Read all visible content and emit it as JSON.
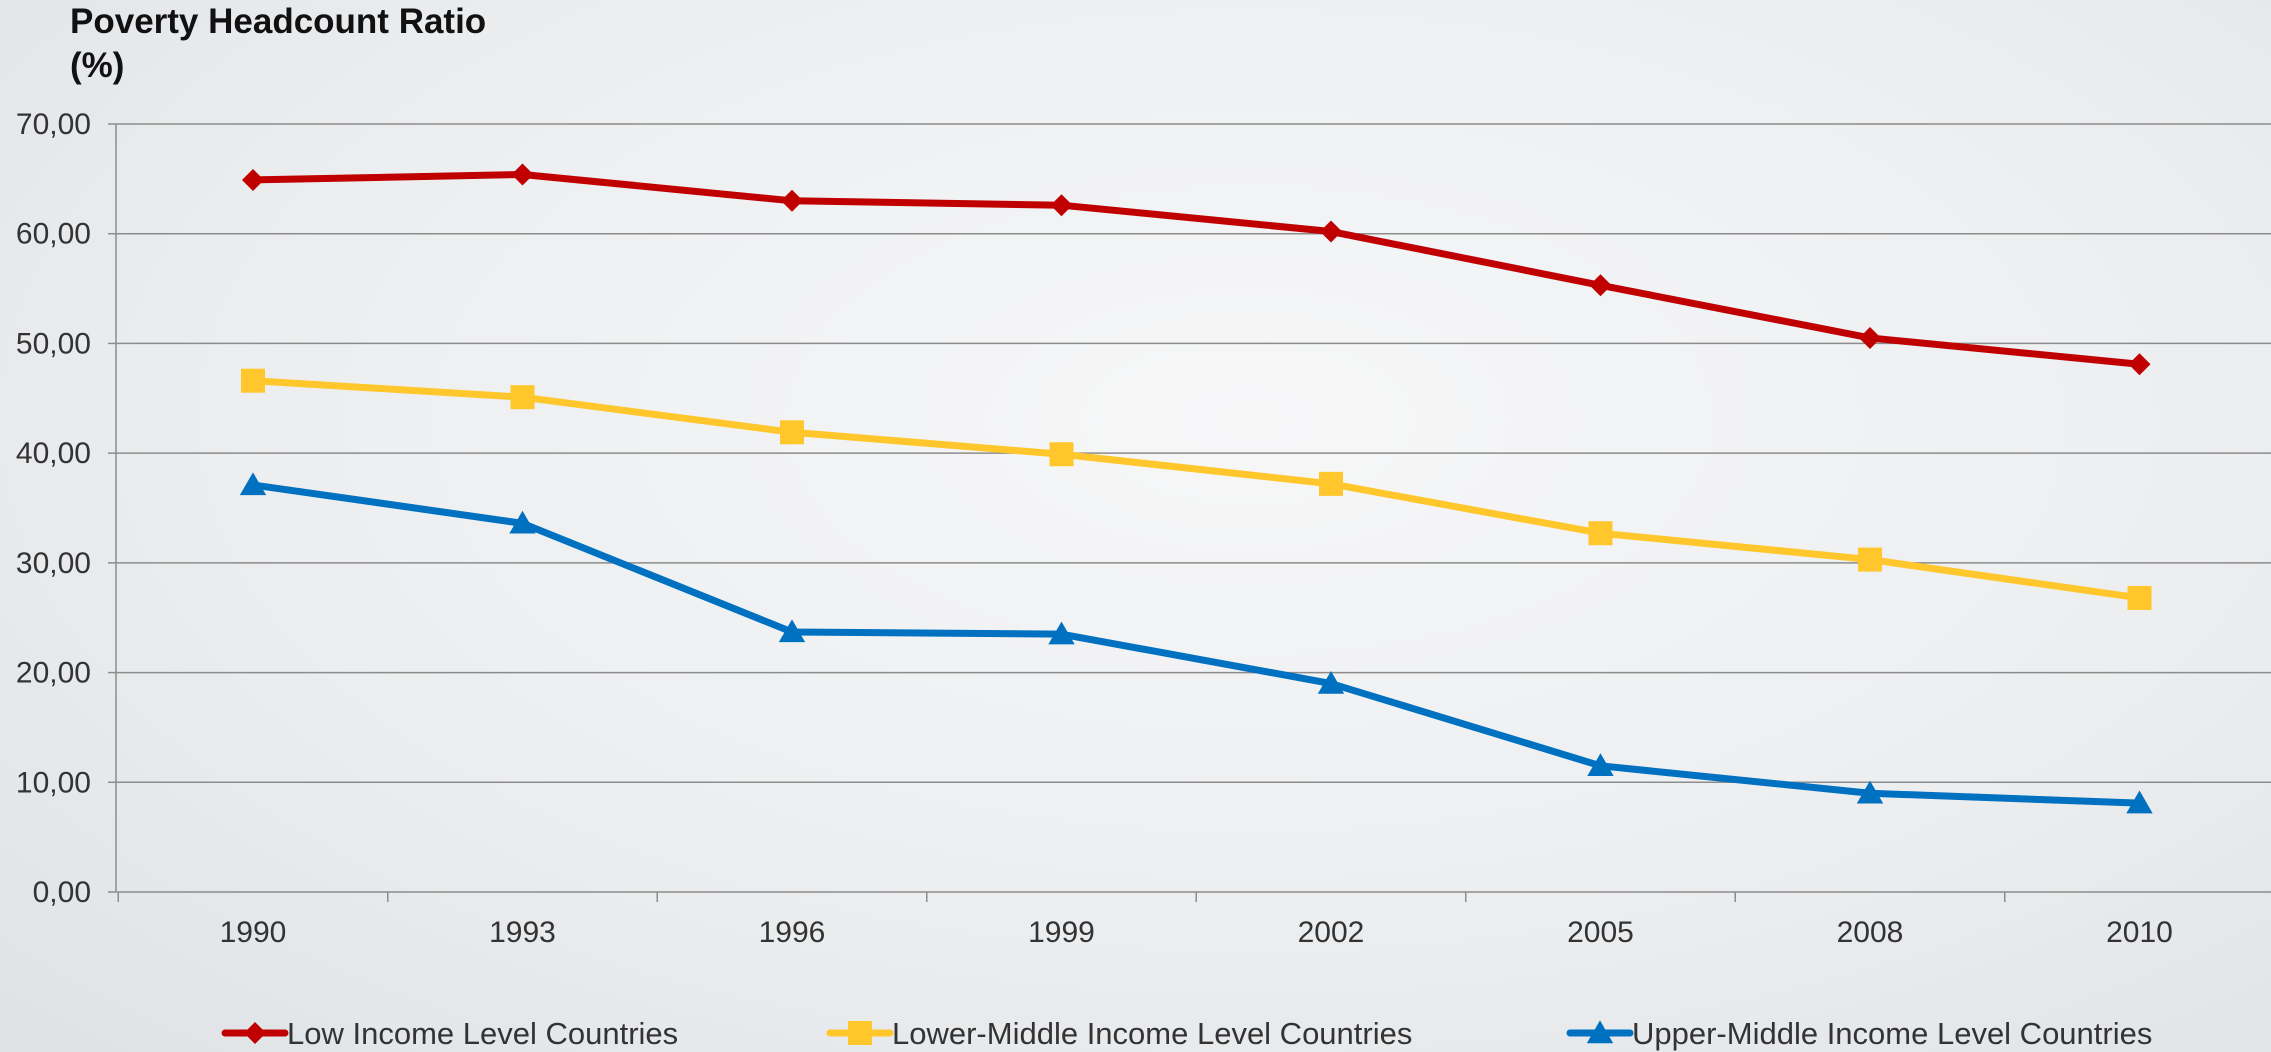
{
  "chart_data": {
    "type": "line",
    "ylabel": "Poverty Headcount Ratio (%)",
    "xlabel": "",
    "title": "",
    "categories": [
      "1990",
      "1993",
      "1996",
      "1999",
      "2002",
      "2005",
      "2008",
      "2010"
    ],
    "ylim": [
      0,
      70
    ],
    "ytick_labels": [
      "0,00",
      "10,00",
      "20,00",
      "30,00",
      "40,00",
      "50,00",
      "60,00",
      "70,00"
    ],
    "grid": true,
    "legend_position": "bottom",
    "series": [
      {
        "name": "Low Income Level Countries",
        "color": "#C00000",
        "marker": "diamond",
        "values": [
          64.9,
          65.4,
          63.0,
          62.6,
          60.2,
          55.3,
          50.5,
          48.1
        ]
      },
      {
        "name": "Lower-Middle Income Level Countries",
        "color": "#FFC72C",
        "marker": "square",
        "values": [
          46.6,
          45.1,
          41.9,
          39.9,
          37.2,
          32.7,
          30.3,
          26.8
        ]
      },
      {
        "name": "Upper-Middle Income Level Countries",
        "color": "#0070C0",
        "marker": "triangle",
        "values": [
          37.1,
          33.6,
          23.7,
          23.5,
          19.0,
          11.5,
          9.0,
          8.1
        ]
      }
    ]
  }
}
